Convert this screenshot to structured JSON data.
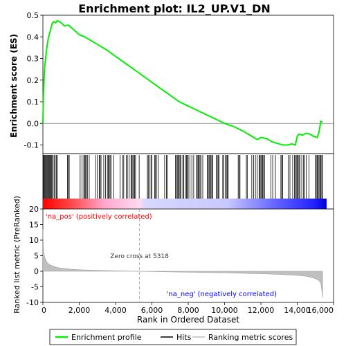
{
  "chart_data": {
    "type": "line",
    "title": "Enrichment plot: IL2_UP.V1_DN",
    "colors": {
      "enrichment": "#00ee00",
      "hits": "#000000",
      "metric": "#bfbfbf",
      "pos_label": "#ff0000",
      "neg_label": "#0000ff",
      "zero_line": "#808080"
    },
    "top_panel": {
      "ylabel": "Enrichment score (ES)",
      "ylim": [
        -0.14,
        0.5
      ],
      "yticks": [
        "0.5",
        "0.4",
        "0.3",
        "0.2",
        "0.1",
        "0.0",
        "-0.1"
      ],
      "ytick_values": [
        0.5,
        0.4,
        0.3,
        0.2,
        0.1,
        0.0,
        -0.1
      ],
      "series": [
        {
          "name": "Enrichment profile",
          "x": [
            0,
            30,
            60,
            100,
            150,
            200,
            250,
            300,
            350,
            400,
            450,
            500,
            600,
            700,
            800,
            900,
            1000,
            1200,
            1400,
            1600,
            1800,
            2000,
            2300,
            2600,
            3000,
            3500,
            4000,
            4500,
            5000,
            5500,
            6000,
            6500,
            7000,
            7500,
            8000,
            8500,
            9000,
            9500,
            10000,
            10500,
            11000,
            11500,
            11800,
            12000,
            12300,
            12600,
            13000,
            13200,
            13500,
            13700,
            13900,
            14000,
            14100,
            14300,
            14500,
            14700,
            14900,
            15100,
            15200,
            15300,
            15400
          ],
          "y": [
            0.0,
            0.12,
            0.2,
            0.26,
            0.3,
            0.34,
            0.37,
            0.395,
            0.41,
            0.425,
            0.44,
            0.46,
            0.47,
            0.465,
            0.475,
            0.47,
            0.465,
            0.45,
            0.455,
            0.44,
            0.425,
            0.41,
            0.4,
            0.385,
            0.365,
            0.34,
            0.31,
            0.28,
            0.25,
            0.22,
            0.19,
            0.16,
            0.13,
            0.1,
            0.08,
            0.06,
            0.04,
            0.02,
            0.0,
            -0.015,
            -0.035,
            -0.06,
            -0.075,
            -0.065,
            -0.07,
            -0.085,
            -0.095,
            -0.1,
            -0.1,
            -0.095,
            -0.1,
            -0.06,
            -0.05,
            -0.055,
            -0.045,
            -0.05,
            -0.06,
            -0.065,
            -0.04,
            0.01,
            0.005
          ]
        }
      ]
    },
    "hits_panel": {
      "legend_name": "Hits",
      "positions": [
        20,
        60,
        100,
        140,
        180,
        220,
        260,
        300,
        340,
        380,
        420,
        460,
        500,
        560,
        620,
        680,
        740,
        800,
        1350,
        1400,
        1450,
        2050,
        2150,
        2250,
        2300,
        2350,
        2400,
        2450,
        2550,
        2900,
        3000,
        3100,
        3150,
        3200,
        3350,
        3450,
        3550,
        3600,
        3650,
        3700,
        3750,
        3900,
        4250,
        4400,
        4450,
        4600,
        4650,
        4750,
        4850,
        4900,
        4950,
        5000,
        5050,
        5100,
        5300,
        5750,
        5800,
        5850,
        5950,
        6000,
        6150,
        6200,
        6250,
        6350,
        6700,
        6800,
        6850,
        7300,
        7350,
        7400,
        7450,
        7500,
        7550,
        7600,
        7700,
        7750,
        7850,
        7900,
        7950,
        8000,
        8100,
        8200,
        8300,
        8450,
        8500,
        8550,
        8600,
        8650,
        8700,
        8800,
        9050,
        9100,
        9150,
        9200,
        9250,
        9300,
        9350,
        9550,
        9600,
        9650,
        9700,
        9900,
        9950,
        10050,
        10100,
        10150,
        10200,
        10750,
        10800,
        10850,
        11200,
        11250,
        11500,
        11600,
        11700,
        11800,
        11900,
        11950,
        12000,
        12050,
        12100,
        12150,
        12200,
        12550,
        12650,
        12800,
        13100,
        13150,
        13200,
        13500,
        13600,
        13750,
        13850,
        13900,
        13950,
        14000,
        14050,
        14100,
        14150,
        14250,
        14350,
        14400,
        14500,
        14650,
        15000,
        15050,
        15100,
        15150,
        15200,
        15250,
        15300,
        15350,
        15400
      ]
    },
    "bottom_panel": {
      "legend_name": "Ranking metric scores",
      "ylabel": "Ranked list metric (PreRanked)",
      "ylim": [
        -10,
        20
      ],
      "yticks": [
        "20",
        "15",
        "10",
        "5",
        "0",
        "-5",
        "-10"
      ],
      "ytick_values": [
        20,
        15,
        10,
        5,
        0,
        -5,
        -10
      ],
      "x": [
        0,
        20,
        50,
        100,
        200,
        300,
        500,
        800,
        1000,
        1500,
        2000,
        3000,
        4000,
        5000,
        5318,
        6000,
        8000,
        10000,
        12000,
        13000,
        14000,
        14500,
        14800,
        15000,
        15200,
        15300,
        15350,
        15400
      ],
      "y": [
        13.5,
        9,
        6,
        4.5,
        3.2,
        2.4,
        1.8,
        1.2,
        1.0,
        0.7,
        0.5,
        0.3,
        0.15,
        0.05,
        0.0,
        -0.1,
        -0.3,
        -0.5,
        -0.8,
        -1.0,
        -1.3,
        -1.6,
        -2.0,
        -2.4,
        -3.0,
        -4.0,
        -6.0,
        -8.5
      ],
      "zero_cross_label": "Zero cross at 5318",
      "zero_cross_x": 5318,
      "pos_label": "'na_pos' (positively correlated)",
      "neg_label": "'na_neg' (negatively correlated)"
    },
    "xlabel": "Rank in Ordered Dataset",
    "xlim": [
      0,
      16000
    ],
    "xticks": [
      "0",
      "2,000",
      "4,000",
      "6,000",
      "8,000",
      "10,000",
      "12,000",
      "14,000",
      "16,000"
    ],
    "xtick_values": [
      0,
      2000,
      4000,
      6000,
      8000,
      10000,
      12000,
      14000,
      16000
    ],
    "list_size": 15400,
    "legend": [
      "Enrichment profile",
      "Hits",
      "Ranking metric scores"
    ]
  }
}
